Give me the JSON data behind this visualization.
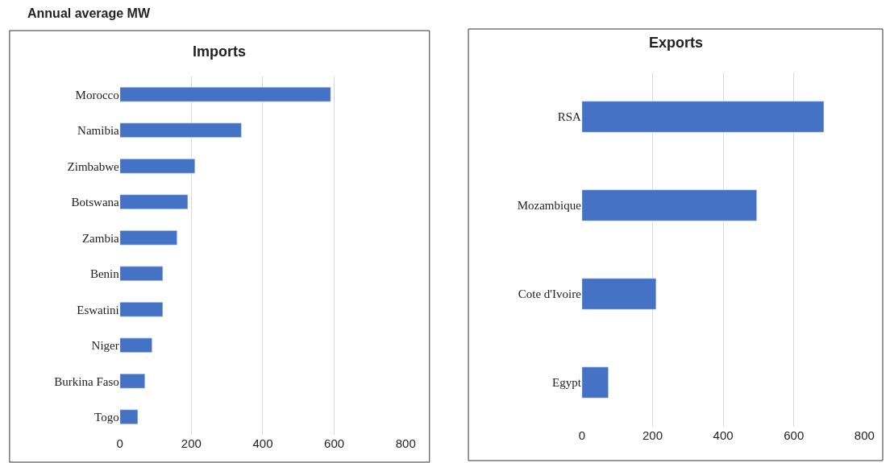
{
  "chart_data": [
    {
      "type": "bar",
      "title": "Imports",
      "orientation": "horizontal",
      "categories": [
        "Morocco",
        "Namibia",
        "Zimbabwe",
        "Botswana",
        "Zambia",
        "Benin",
        "Eswatini",
        "Niger",
        "Burkina Faso",
        "Togo"
      ],
      "values": [
        590,
        340,
        210,
        190,
        160,
        120,
        120,
        90,
        70,
        50
      ],
      "color": "#4472c4",
      "xlim": [
        0,
        800
      ],
      "xticks": [
        0,
        200,
        400,
        600,
        800
      ],
      "grid": "x",
      "annotations": [
        "Annual average MW"
      ]
    },
    {
      "type": "bar",
      "title": "Exports",
      "orientation": "horizontal",
      "categories": [
        "RSA",
        "Mozambique",
        "Cote d'Ivoire",
        "Egypt"
      ],
      "values": [
        685,
        495,
        210,
        75
      ],
      "color": "#4472c4",
      "xlim": [
        0,
        800
      ],
      "xticks": [
        0,
        200,
        400,
        600,
        800
      ],
      "grid": "x"
    }
  ]
}
